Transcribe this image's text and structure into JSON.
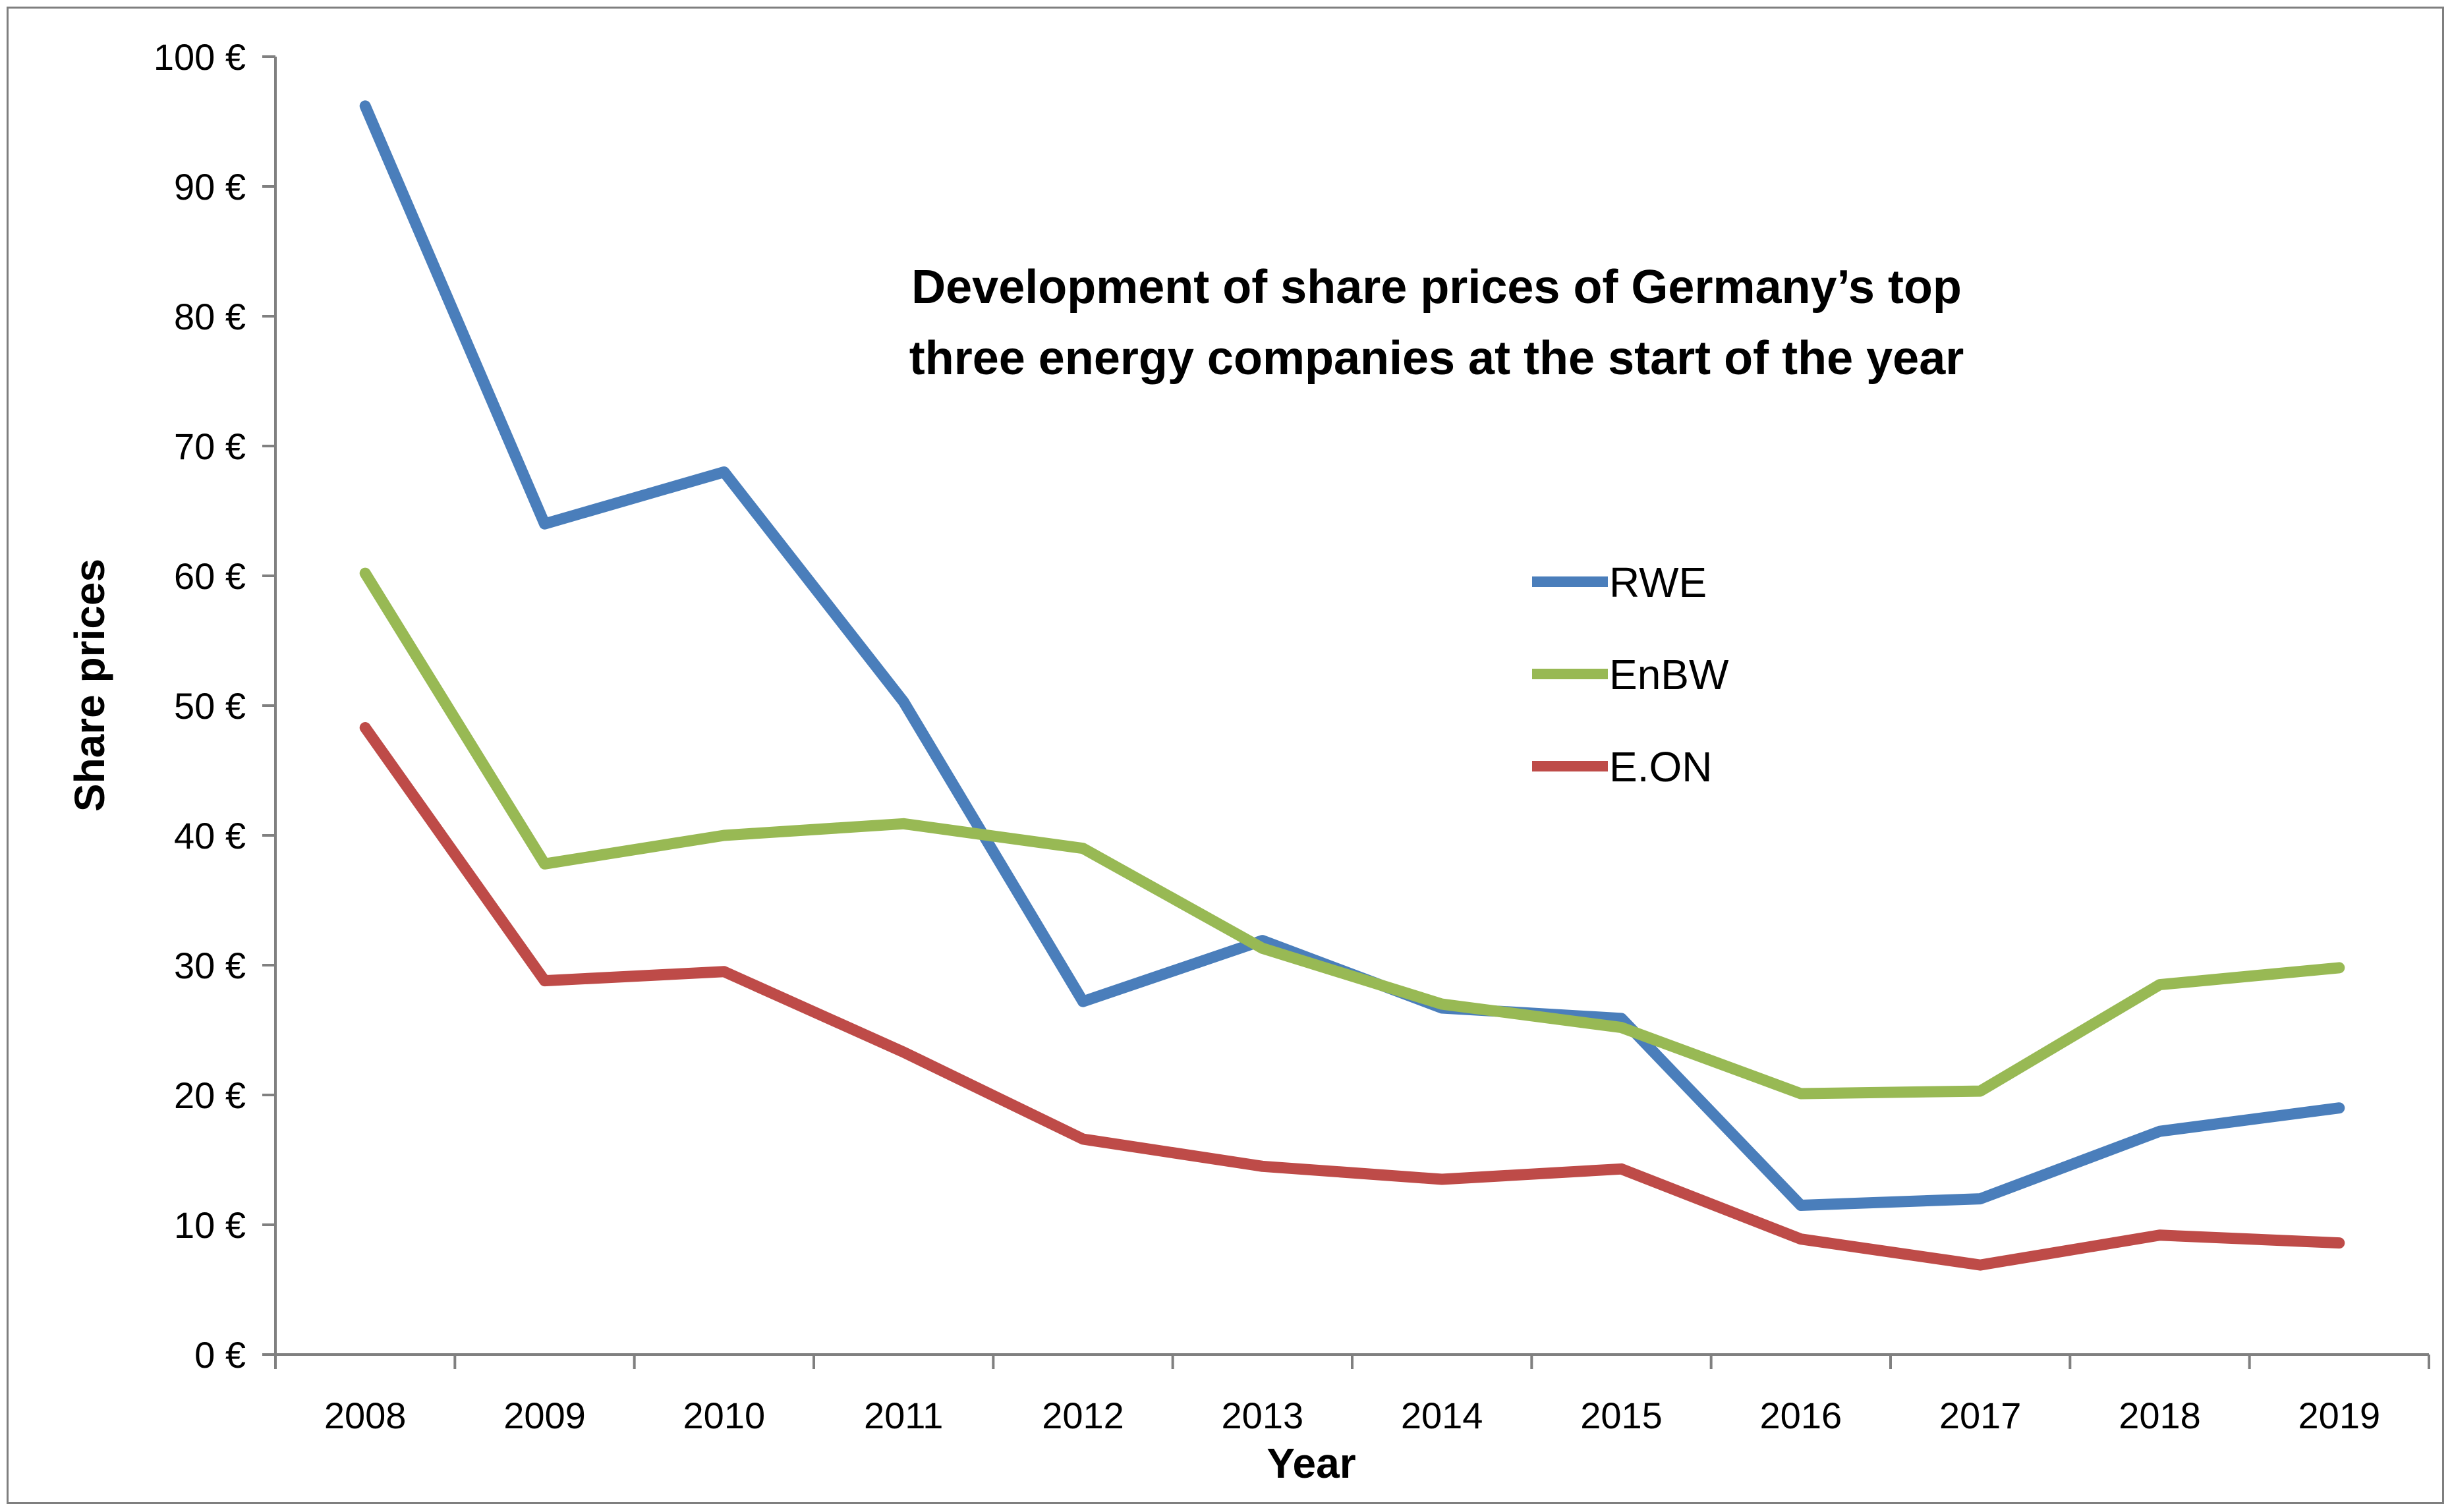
{
  "chart_data": {
    "type": "line",
    "title_lines": [
      "Development of share prices of Germany’s top",
      "three energy companies at the start of the year"
    ],
    "xlabel": "Year",
    "ylabel": "Share prices",
    "ylim": [
      0,
      100
    ],
    "y_ticks": [
      0,
      10,
      20,
      30,
      40,
      50,
      60,
      70,
      80,
      90,
      100
    ],
    "y_tick_labels": [
      "0 €",
      "10 €",
      "20 €",
      "30 €",
      "40 €",
      "50 €",
      "60 €",
      "70 €",
      "80 €",
      "90 €",
      "100 €"
    ],
    "categories": [
      "2008",
      "2009",
      "2010",
      "2011",
      "2012",
      "2013",
      "2014",
      "2015",
      "2016",
      "2017",
      "2018",
      "2019"
    ],
    "grid": false,
    "legend_position": "center-right",
    "series": [
      {
        "name": "RWE",
        "color": "#4a7ebb",
        "values": [
          96.2,
          64.0,
          68.0,
          50.3,
          27.2,
          31.9,
          26.7,
          25.9,
          11.5,
          12.0,
          17.2,
          19.0
        ]
      },
      {
        "name": "EnBW",
        "color": "#98b954",
        "values": [
          60.2,
          37.8,
          40.0,
          40.9,
          39.0,
          31.3,
          27.0,
          25.2,
          20.1,
          20.3,
          28.5,
          29.8
        ]
      },
      {
        "name": "E.ON",
        "color": "#be4b48",
        "values": [
          48.3,
          28.8,
          29.5,
          23.3,
          16.6,
          14.5,
          13.5,
          14.3,
          8.9,
          6.9,
          9.2,
          8.6
        ]
      }
    ]
  }
}
